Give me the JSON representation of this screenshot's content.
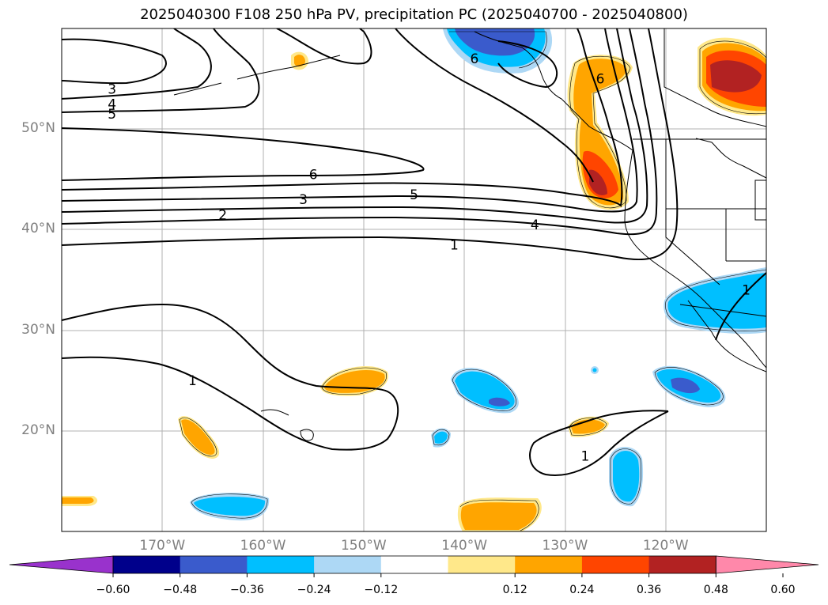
{
  "title": "2025040300 F108 250 hPa PV, precipitation PC (2025040700 - 2025040800)",
  "map": {
    "lat_labels": [
      {
        "text": "50°N",
        "lat": 50
      },
      {
        "text": "40°N",
        "lat": 40
      },
      {
        "text": "30°N",
        "lat": 30
      },
      {
        "text": "20°N",
        "lat": 20
      }
    ],
    "lon_labels": [
      {
        "text": "170°W",
        "lon": -170
      },
      {
        "text": "160°W",
        "lon": -160
      },
      {
        "text": "150°W",
        "lon": -150
      },
      {
        "text": "140°W",
        "lon": -140
      },
      {
        "text": "130°W",
        "lon": -130
      },
      {
        "text": "120°W",
        "lon": -120
      }
    ],
    "extent": {
      "lon_min": -180,
      "lon_max": -110,
      "lat_min": 10,
      "lat_max": 60
    },
    "gridlines": true,
    "contour_labels": [
      {
        "text": "3",
        "lon": -175,
        "lat": 54
      },
      {
        "text": "4",
        "lon": -175,
        "lat": 52.5
      },
      {
        "text": "5",
        "lon": -175,
        "lat": 51.5
      },
      {
        "text": "6",
        "lon": -155,
        "lat": 45.5
      },
      {
        "text": "5",
        "lon": -145,
        "lat": 43.5
      },
      {
        "text": "3",
        "lon": -156,
        "lat": 43
      },
      {
        "text": "2",
        "lon": -164,
        "lat": 41.5
      },
      {
        "text": "4",
        "lon": -133,
        "lat": 40.5
      },
      {
        "text": "1",
        "lon": -141,
        "lat": 38.5
      },
      {
        "text": "1",
        "lon": -167,
        "lat": 25
      },
      {
        "text": "1",
        "lon": -128,
        "lat": 17.5
      },
      {
        "text": "1",
        "lon": -112,
        "lat": 34
      },
      {
        "text": "6",
        "lon": -139,
        "lat": 57
      },
      {
        "text": "6",
        "lon": -126.5,
        "lat": 55
      }
    ]
  },
  "colorbar": {
    "colors": [
      "#9932cc",
      "#00008b",
      "#3a5bcc",
      "#00bfff",
      "#add8f5",
      "#ffffff",
      "#ffe88a",
      "#ffa500",
      "#ff4500",
      "#b22222",
      "#ff88aa"
    ],
    "ticks": [
      "−0.60",
      "−0.48",
      "−0.36",
      "−0.24",
      "−0.12",
      "0.12",
      "0.24",
      "0.36",
      "0.48",
      "0.60"
    ]
  }
}
